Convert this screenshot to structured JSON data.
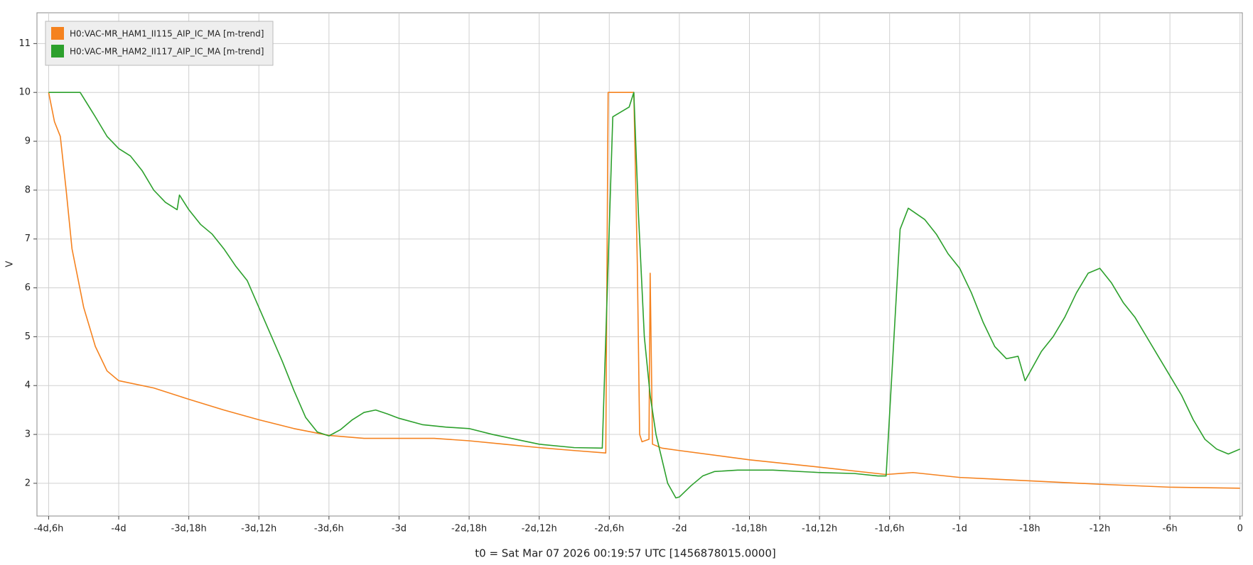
{
  "chart_data": {
    "type": "line",
    "x_label": "t0 = Sat Mar 07 2026 00:19:57 UTC [1456878015.0000]",
    "y_label": "V",
    "xlim": [
      -103,
      0.2
    ],
    "ylim": [
      1.33,
      11.63
    ],
    "xticks": [
      {
        "value": -102,
        "label": "-4d,6h"
      },
      {
        "value": -96,
        "label": "-4d"
      },
      {
        "value": -90,
        "label": "-3d,18h"
      },
      {
        "value": -84,
        "label": "-3d,12h"
      },
      {
        "value": -78,
        "label": "-3d,6h"
      },
      {
        "value": -72,
        "label": "-3d"
      },
      {
        "value": -66,
        "label": "-2d,18h"
      },
      {
        "value": -60,
        "label": "-2d,12h"
      },
      {
        "value": -54,
        "label": "-2d,6h"
      },
      {
        "value": -48,
        "label": "-2d"
      },
      {
        "value": -42,
        "label": "-1d,18h"
      },
      {
        "value": -36,
        "label": "-1d,12h"
      },
      {
        "value": -30,
        "label": "-1d,6h"
      },
      {
        "value": -24,
        "label": "-1d"
      },
      {
        "value": -18,
        "label": "-18h"
      },
      {
        "value": -12,
        "label": "-12h"
      },
      {
        "value": -6,
        "label": "-6h"
      },
      0
    ],
    "yticks": [
      2,
      3,
      4,
      5,
      6,
      7,
      8,
      9,
      10,
      11
    ],
    "grid": true,
    "legend": "upper left",
    "series": [
      {
        "name": "H0:VAC-MR_HAM1_II115_AIP_IC_MA [m-trend]",
        "color": "#f5821f",
        "x": [
          -102,
          -101.5,
          -101,
          -100.5,
          -100,
          -99,
          -98,
          -97,
          -96,
          -93,
          -90,
          -87,
          -84,
          -81,
          -78,
          -75,
          -72,
          -69,
          -66,
          -63,
          -60,
          -57,
          -54.3,
          -54.1,
          -51.9,
          -51.6,
          -51.4,
          -51.2,
          -50.6,
          -50.5,
          -50.3,
          -49.5,
          -48,
          -42,
          -36,
          -30.3,
          -28,
          -24,
          -18,
          -12,
          -6,
          0
        ],
        "values": [
          10,
          9.4,
          9.1,
          8.0,
          6.8,
          5.6,
          4.8,
          4.3,
          4.1,
          3.95,
          3.72,
          3.5,
          3.3,
          3.12,
          2.98,
          2.92,
          2.92,
          2.92,
          2.87,
          2.8,
          2.73,
          2.67,
          2.62,
          10,
          10,
          6.5,
          3.0,
          2.85,
          2.9,
          6.3,
          2.8,
          2.72,
          2.67,
          2.48,
          2.33,
          2.18,
          2.22,
          2.12,
          2.05,
          1.98,
          1.92,
          1.9
        ]
      },
      {
        "name": "H0:VAC-MR_HAM2_II117_AIP_IC_MA [m-trend]",
        "color": "#2ca02c",
        "x": [
          -102,
          -99.3,
          -98,
          -97,
          -96,
          -95,
          -94,
          -93,
          -92,
          -91,
          -90.8,
          -90,
          -89,
          -88,
          -87,
          -86,
          -85,
          -84,
          -83,
          -82,
          -81,
          -80,
          -79,
          -78,
          -77,
          -76,
          -75,
          -74,
          -73,
          -72,
          -70,
          -68,
          -66,
          -64,
          -62,
          -60,
          -57,
          -54.6,
          -53.7,
          -52.3,
          -51.9,
          -51.5,
          -51,
          -50.5,
          -50,
          -49.5,
          -49,
          -48.3,
          -48,
          -47,
          -46,
          -45,
          -43,
          -40,
          -36,
          -33,
          -31,
          -30.3,
          -29.1,
          -28.4,
          -27,
          -26,
          -25,
          -24,
          -23,
          -22,
          -21,
          -20,
          -19,
          -18.4,
          -17,
          -16,
          -15,
          -14,
          -13,
          -12,
          -11,
          -10,
          -9,
          -8,
          -7,
          -6,
          -5,
          -4,
          -3,
          -2,
          -1,
          0
        ],
        "values": [
          10,
          10,
          9.5,
          9.1,
          8.85,
          8.7,
          8.4,
          8.0,
          7.75,
          7.6,
          7.9,
          7.6,
          7.3,
          7.1,
          6.8,
          6.45,
          6.15,
          5.6,
          5.05,
          4.5,
          3.9,
          3.35,
          3.05,
          2.97,
          3.1,
          3.3,
          3.45,
          3.5,
          3.42,
          3.33,
          3.2,
          3.15,
          3.12,
          3.0,
          2.9,
          2.8,
          2.73,
          2.72,
          9.5,
          9.7,
          10,
          7.5,
          5,
          3.8,
          3.0,
          2.5,
          2.0,
          1.7,
          1.72,
          1.95,
          2.15,
          2.24,
          2.27,
          2.27,
          2.22,
          2.2,
          2.15,
          2.15,
          7.2,
          7.63,
          7.4,
          7.1,
          6.7,
          6.4,
          5.9,
          5.3,
          4.8,
          4.55,
          4.6,
          4.1,
          4.7,
          5.0,
          5.4,
          5.9,
          6.3,
          6.4,
          6.1,
          5.7,
          5.4,
          5.0,
          4.6,
          4.2,
          3.8,
          3.3,
          2.9,
          2.7,
          2.6,
          2.7
        ]
      }
    ]
  }
}
